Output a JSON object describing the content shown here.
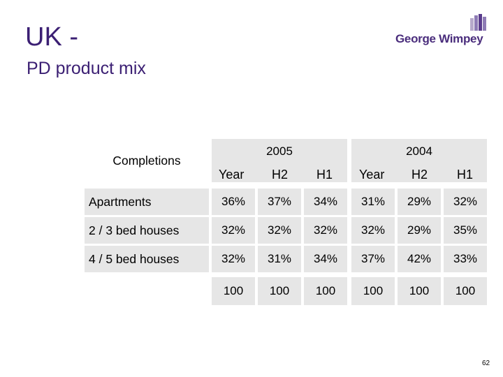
{
  "title": "UK -",
  "subtitle": "PD product mix",
  "logo": {
    "brand": "George Wimpey",
    "icon": "company-logo-bars-icon",
    "colors": [
      "#5a3c8c",
      "#8e7bb5",
      "#b7aacb"
    ]
  },
  "table": {
    "row_header": "Completions",
    "groups": [
      "2005",
      "2004"
    ],
    "columns": [
      "Year",
      "H2",
      "H1",
      "Year",
      "H2",
      "H1"
    ],
    "rows": [
      {
        "label": "Apartments",
        "values": [
          "36%",
          "37%",
          "34%",
          "31%",
          "29%",
          "32%"
        ]
      },
      {
        "label": "2 / 3 bed houses",
        "values": [
          "32%",
          "32%",
          "32%",
          "32%",
          "29%",
          "35%"
        ]
      },
      {
        "label": "4 / 5 bed houses",
        "values": [
          "32%",
          "31%",
          "34%",
          "37%",
          "42%",
          "33%"
        ]
      }
    ],
    "totals": [
      "100",
      "100",
      "100",
      "100",
      "100",
      "100"
    ]
  },
  "page_number": "62",
  "colors": {
    "title": "#3b1f73",
    "cell_bg": "#e6e6e6"
  }
}
